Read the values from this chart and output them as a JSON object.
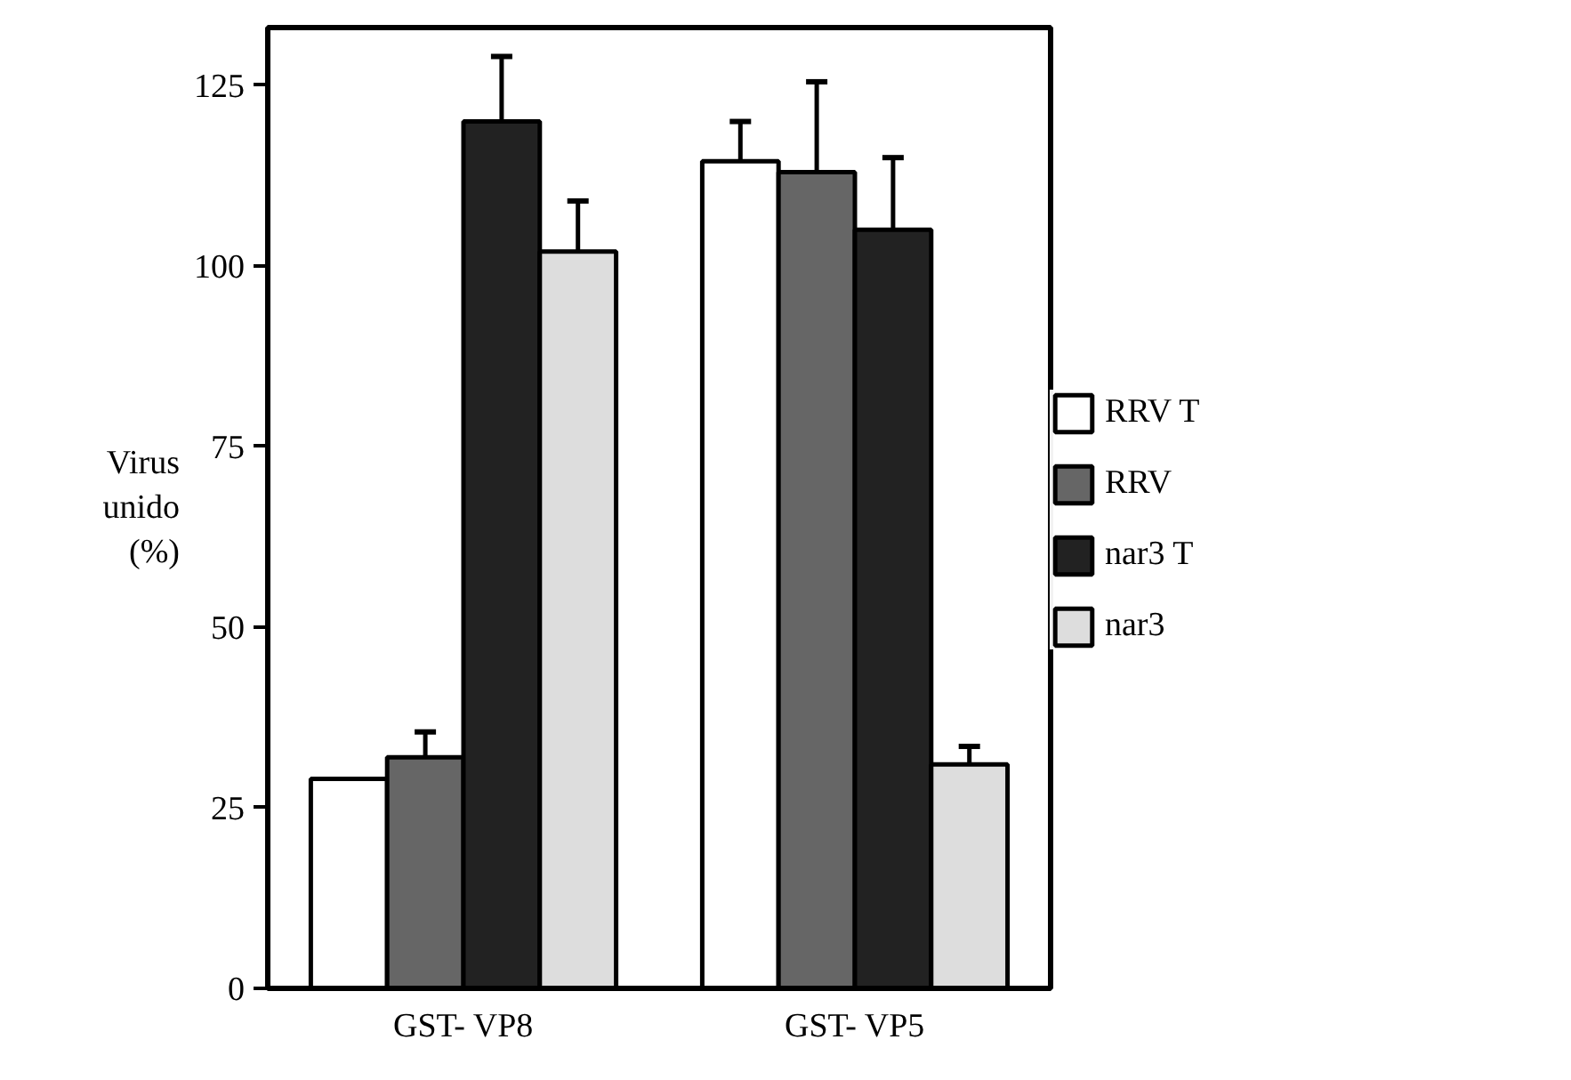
{
  "chart_data": {
    "type": "bar",
    "ylabel": "Virus\nunido\n(%)",
    "categories": [
      "GST- VP8",
      "GST- VP5"
    ],
    "series": [
      {
        "name": "RRV T",
        "color": "#ffffff",
        "values": [
          29,
          114.5
        ],
        "errors": [
          null,
          [
            114.5,
            120
          ]
        ]
      },
      {
        "name": "RRV",
        "color": "#666666",
        "values": [
          32,
          113
        ],
        "errors": [
          [
            32,
            35.5
          ],
          [
            113,
            125.5
          ]
        ]
      },
      {
        "name": "nar3 T",
        "color": "#222222",
        "values": [
          120,
          105
        ],
        "errors": [
          [
            120,
            129
          ],
          [
            105,
            115
          ]
        ]
      },
      {
        "name": "nar3",
        "color": "#dddddd",
        "values": [
          102,
          31
        ],
        "errors": [
          [
            102,
            109
          ],
          [
            31,
            33.5
          ]
        ]
      }
    ],
    "ylim": [
      0,
      133
    ],
    "yticks": [
      0,
      25,
      50,
      75,
      100,
      125
    ],
    "grid": false,
    "legend": "right"
  }
}
